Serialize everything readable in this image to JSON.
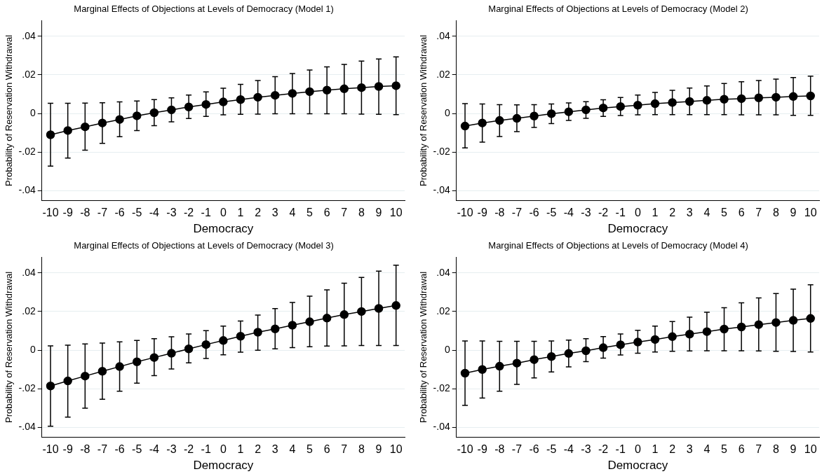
{
  "chart_data": [
    {
      "type": "line",
      "title": "Marginal Effects of Objections at Levels of Democracy (Model 1)",
      "xlabel": "Democracy",
      "ylabel": "Probability of Reservation Withdrawal",
      "x": [
        -10,
        -9,
        -8,
        -7,
        -6,
        -5,
        -4,
        -3,
        -2,
        -1,
        0,
        1,
        2,
        3,
        4,
        5,
        6,
        7,
        8,
        9,
        10
      ],
      "series": [
        {
          "color": "#000000",
          "values": [
            -0.011,
            -0.0088,
            -0.0069,
            -0.0049,
            -0.0031,
            -0.0012,
            0.0004,
            0.0019,
            0.0034,
            0.0047,
            0.006,
            0.0072,
            0.0084,
            0.0094,
            0.0104,
            0.0113,
            0.0121,
            0.0128,
            0.0134,
            0.014,
            0.0144
          ],
          "errors": [
            [
              -0.0272,
              0.0053
            ],
            [
              -0.023,
              0.0053
            ],
            [
              -0.019,
              0.0054
            ],
            [
              -0.0154,
              0.0056
            ],
            [
              -0.012,
              0.006
            ],
            [
              -0.0088,
              0.0065
            ],
            [
              -0.0063,
              0.0072
            ],
            [
              -0.0043,
              0.0081
            ],
            [
              -0.0026,
              0.0096
            ],
            [
              -0.0015,
              0.0112
            ],
            [
              -0.0007,
              0.0131
            ],
            [
              -0.0004,
              0.0151
            ],
            [
              -0.0003,
              0.0171
            ],
            [
              -0.0001,
              0.0191
            ],
            [
              -0.0001,
              0.0207
            ],
            [
              -0.0001,
              0.0225
            ],
            [
              -0.0001,
              0.0241
            ],
            [
              -0.0001,
              0.0254
            ],
            [
              -0.0003,
              0.0271
            ],
            [
              -0.0004,
              0.0282
            ],
            [
              -0.0006,
              0.0293
            ]
          ]
        }
      ],
      "xlim": [
        -10.5,
        10.5
      ],
      "xticks": [
        -10,
        -9,
        -8,
        -7,
        -6,
        -5,
        -4,
        -3,
        -2,
        -1,
        0,
        1,
        2,
        3,
        4,
        5,
        6,
        7,
        8,
        9,
        10
      ],
      "ylim": [
        -0.045,
        0.048
      ],
      "yticks": [
        {
          "value": -0.04,
          "label": "-.04"
        },
        {
          "value": -0.02,
          "label": "-.02"
        },
        {
          "value": 0,
          "label": "0"
        },
        {
          "value": 0.02,
          "label": ".02"
        },
        {
          "value": 0.04,
          "label": ".04"
        }
      ],
      "grid": "y",
      "legend": false,
      "marker": "circle",
      "line_style": "solid"
    },
    {
      "type": "line",
      "title": "Marginal Effects of Objections at Levels of Democracy (Model 2)",
      "xlabel": "Democracy",
      "ylabel": "Probability of Reservation Withdrawal",
      "x": [
        -10,
        -9,
        -8,
        -7,
        -6,
        -5,
        -4,
        -3,
        -2,
        -1,
        0,
        1,
        2,
        3,
        4,
        5,
        6,
        7,
        8,
        9,
        10
      ],
      "series": [
        {
          "color": "#000000",
          "values": [
            -0.0065,
            -0.0049,
            -0.0036,
            -0.0025,
            -0.0013,
            -0.0001,
            0.0009,
            0.0019,
            0.0029,
            0.0036,
            0.0043,
            0.0051,
            0.0057,
            0.0062,
            0.0068,
            0.0074,
            0.0077,
            0.0081,
            0.0084,
            0.0088,
            0.0091
          ],
          "errors": [
            [
              -0.0178,
              0.0051
            ],
            [
              -0.0148,
              0.0049
            ],
            [
              -0.0119,
              0.0046
            ],
            [
              -0.0094,
              0.0045
            ],
            [
              -0.0072,
              0.0046
            ],
            [
              -0.0052,
              0.0049
            ],
            [
              -0.0036,
              0.0055
            ],
            [
              -0.0025,
              0.0061
            ],
            [
              -0.0015,
              0.0071
            ],
            [
              -0.001,
              0.0083
            ],
            [
              -0.0007,
              0.0096
            ],
            [
              -0.0006,
              0.0109
            ],
            [
              -0.0006,
              0.012
            ],
            [
              -0.0006,
              0.0132
            ],
            [
              -0.0006,
              0.0143
            ],
            [
              -0.0006,
              0.0155
            ],
            [
              -0.0007,
              0.0164
            ],
            [
              -0.0007,
              0.0171
            ],
            [
              -0.0007,
              0.0178
            ],
            [
              -0.0009,
              0.0186
            ],
            [
              -0.0009,
              0.0193
            ]
          ]
        }
      ],
      "xlim": [
        -10.5,
        10.5
      ],
      "xticks": [
        -10,
        -9,
        -8,
        -7,
        -6,
        -5,
        -4,
        -3,
        -2,
        -1,
        0,
        1,
        2,
        3,
        4,
        5,
        6,
        7,
        8,
        9,
        10
      ],
      "ylim": [
        -0.045,
        0.048
      ],
      "yticks": [
        {
          "value": -0.04,
          "label": "-.04"
        },
        {
          "value": -0.02,
          "label": "-.02"
        },
        {
          "value": 0,
          "label": "0"
        },
        {
          "value": 0.02,
          "label": ".02"
        },
        {
          "value": 0.04,
          "label": ".04"
        }
      ],
      "grid": "y",
      "legend": false,
      "marker": "circle",
      "line_style": "solid"
    },
    {
      "type": "line",
      "title": "Marginal Effects of Objections at Levels of Democracy (Model 3)",
      "xlabel": "Democracy",
      "ylabel": "Probability of Reservation Withdrawal",
      "x": [
        -10,
        -9,
        -8,
        -7,
        -6,
        -5,
        -4,
        -3,
        -2,
        -1,
        0,
        1,
        2,
        3,
        4,
        5,
        6,
        7,
        8,
        9,
        10
      ],
      "series": [
        {
          "color": "#000000",
          "values": [
            -0.0185,
            -0.0159,
            -0.0134,
            -0.0109,
            -0.0085,
            -0.006,
            -0.0038,
            -0.0016,
            0.0007,
            0.0029,
            0.005,
            0.0072,
            0.0093,
            0.011,
            0.0129,
            0.0147,
            0.0166,
            0.0184,
            0.02,
            0.0216,
            0.0231
          ],
          "errors": [
            [
              -0.0393,
              0.0022
            ],
            [
              -0.0346,
              0.0026
            ],
            [
              -0.03,
              0.0032
            ],
            [
              -0.0254,
              0.0037
            ],
            [
              -0.0212,
              0.0043
            ],
            [
              -0.0171,
              0.005
            ],
            [
              -0.0132,
              0.0059
            ],
            [
              -0.0097,
              0.0069
            ],
            [
              -0.0066,
              0.0084
            ],
            [
              -0.0043,
              0.0101
            ],
            [
              -0.0024,
              0.0125
            ],
            [
              -0.001,
              0.0151
            ],
            [
              0,
              0.0182
            ],
            [
              0.0007,
              0.0215
            ],
            [
              0.0013,
              0.0247
            ],
            [
              0.0018,
              0.0279
            ],
            [
              0.0021,
              0.0312
            ],
            [
              0.0022,
              0.0346
            ],
            [
              0.0024,
              0.0376
            ],
            [
              0.0024,
              0.0409
            ],
            [
              0.0024,
              0.044
            ]
          ]
        }
      ],
      "xlim": [
        -10.5,
        10.5
      ],
      "xticks": [
        -10,
        -9,
        -8,
        -7,
        -6,
        -5,
        -4,
        -3,
        -2,
        -1,
        0,
        1,
        2,
        3,
        4,
        5,
        6,
        7,
        8,
        9,
        10
      ],
      "ylim": [
        -0.045,
        0.048
      ],
      "yticks": [
        {
          "value": -0.04,
          "label": "-.04"
        },
        {
          "value": -0.02,
          "label": "-.02"
        },
        {
          "value": 0,
          "label": "0"
        },
        {
          "value": 0.02,
          "label": ".02"
        },
        {
          "value": 0.04,
          "label": ".04"
        }
      ],
      "grid": "y",
      "legend": false,
      "marker": "circle",
      "line_style": "solid"
    },
    {
      "type": "line",
      "title": "Marginal Effects of Objections at Levels of Democracy (Model 4)",
      "xlabel": "Democracy",
      "ylabel": "Probability of Reservation Withdrawal",
      "x": [
        -10,
        -9,
        -8,
        -7,
        -6,
        -5,
        -4,
        -3,
        -2,
        -1,
        0,
        1,
        2,
        3,
        4,
        5,
        6,
        7,
        8,
        9,
        10
      ],
      "series": [
        {
          "color": "#000000",
          "values": [
            -0.0119,
            -0.01,
            -0.0083,
            -0.0067,
            -0.0049,
            -0.0033,
            -0.0017,
            -0.0003,
            0.0013,
            0.0028,
            0.0042,
            0.0055,
            0.007,
            0.0083,
            0.0096,
            0.0109,
            0.012,
            0.0132,
            0.0143,
            0.0154,
            0.0164
          ],
          "errors": [
            [
              -0.0286,
              0.0048
            ],
            [
              -0.0248,
              0.0048
            ],
            [
              -0.0212,
              0.0046
            ],
            [
              -0.0177,
              0.0046
            ],
            [
              -0.0143,
              0.0046
            ],
            [
              -0.0113,
              0.0048
            ],
            [
              -0.0086,
              0.0052
            ],
            [
              -0.0059,
              0.0059
            ],
            [
              -0.0041,
              0.007
            ],
            [
              -0.0025,
              0.0084
            ],
            [
              -0.0016,
              0.0103
            ],
            [
              -0.0009,
              0.0125
            ],
            [
              -0.0006,
              0.0148
            ],
            [
              -0.0004,
              0.0171
            ],
            [
              -0.0003,
              0.0196
            ],
            [
              -0.0003,
              0.022
            ],
            [
              -0.0003,
              0.0245
            ],
            [
              -0.0004,
              0.027
            ],
            [
              -0.0006,
              0.0293
            ],
            [
              -0.0007,
              0.0316
            ],
            [
              -0.0009,
              0.0338
            ]
          ]
        }
      ],
      "xlim": [
        -10.5,
        10.5
      ],
      "xticks": [
        -10,
        -9,
        -8,
        -7,
        -6,
        -5,
        -4,
        -3,
        -2,
        -1,
        0,
        1,
        2,
        3,
        4,
        5,
        6,
        7,
        8,
        9,
        10
      ],
      "ylim": [
        -0.045,
        0.048
      ],
      "yticks": [
        {
          "value": -0.04,
          "label": "-.04"
        },
        {
          "value": -0.02,
          "label": "-.02"
        },
        {
          "value": 0,
          "label": "0"
        },
        {
          "value": 0.02,
          "label": ".02"
        },
        {
          "value": 0.04,
          "label": ".04"
        }
      ],
      "grid": "y",
      "legend": false,
      "marker": "circle",
      "line_style": "solid"
    }
  ]
}
